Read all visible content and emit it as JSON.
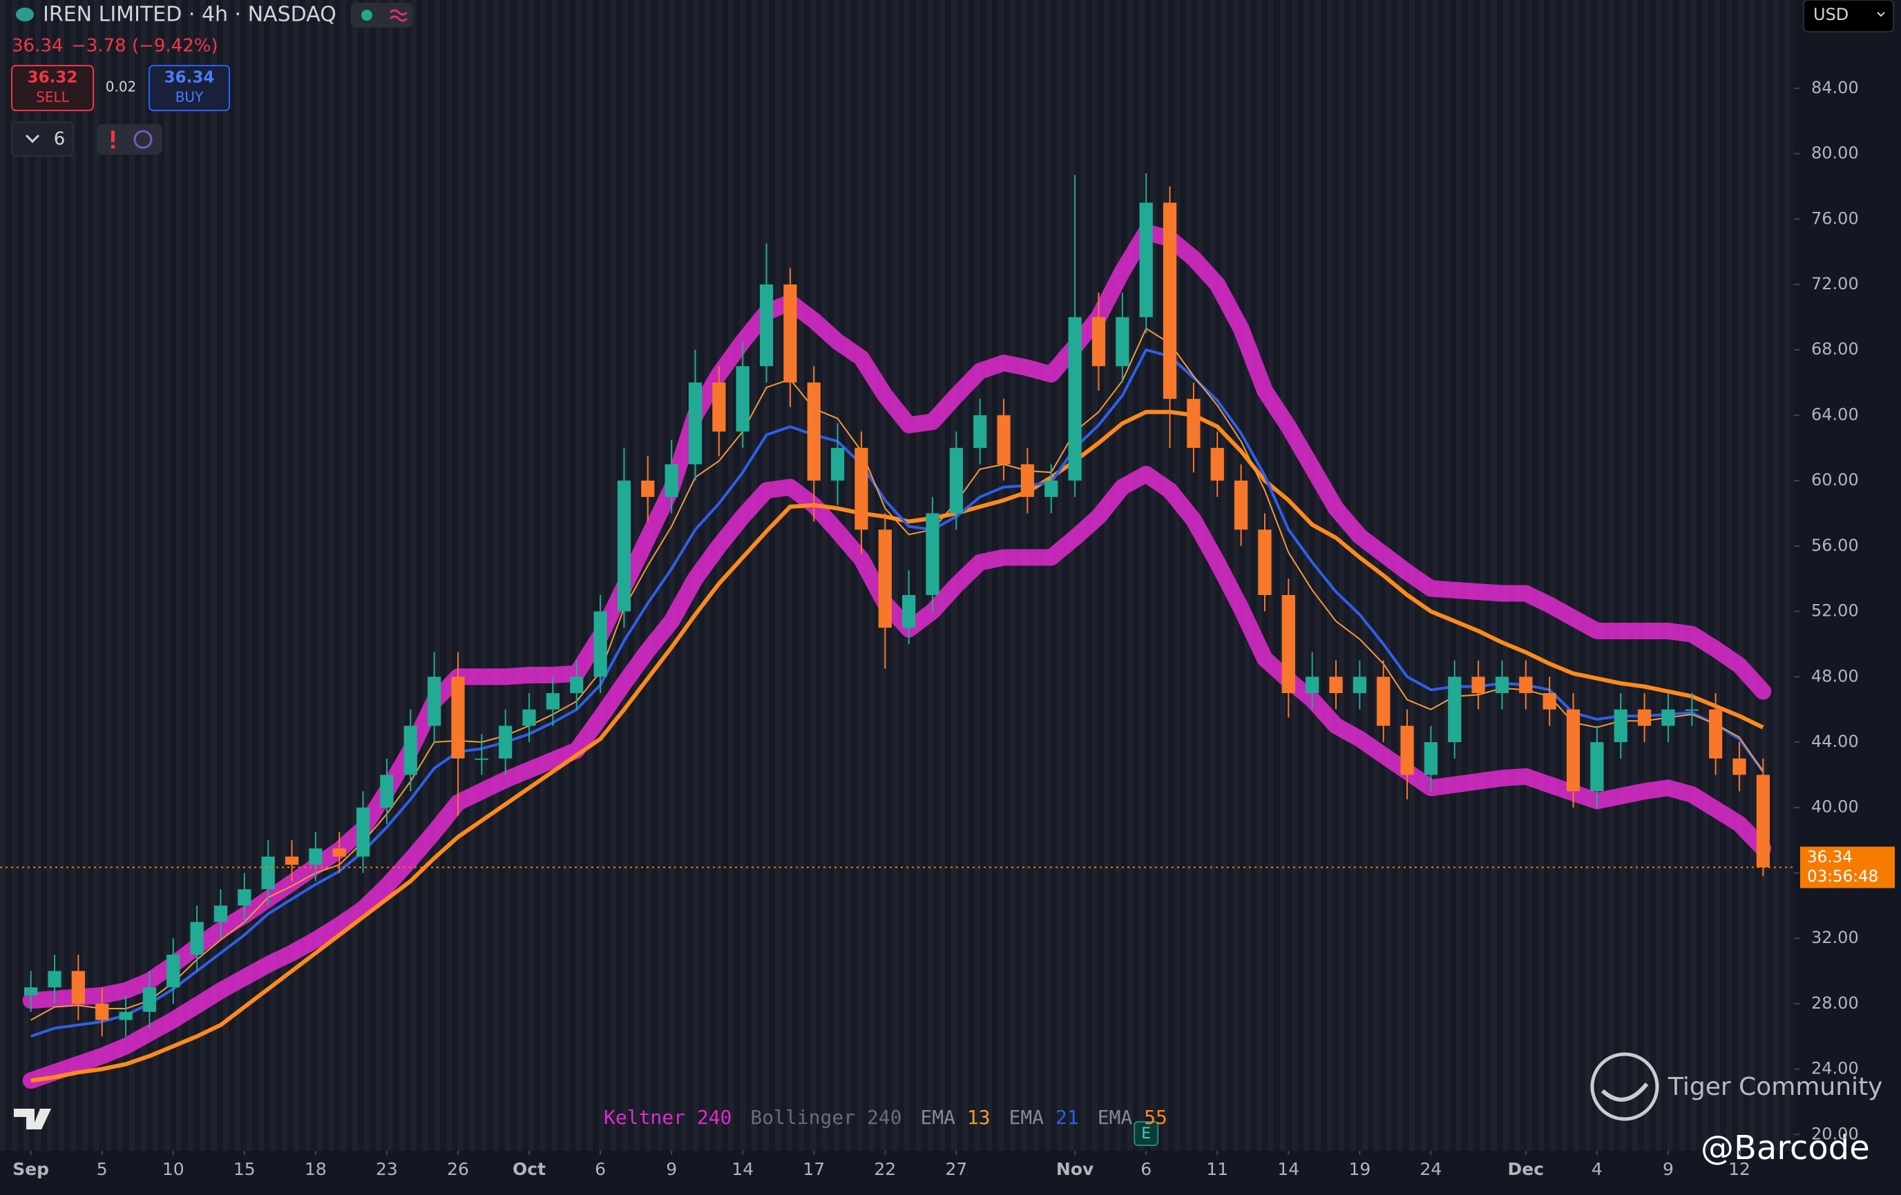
{
  "header": {
    "title": "IREN LIMITED · 4h · NASDAQ",
    "price": "36.34",
    "change": "−3.78 (−9.42%)",
    "sell_price": "36.32",
    "sell_label": "SELL",
    "spread": "0.02",
    "buy_price": "36.34",
    "buy_label": "BUY",
    "indicator_count": "6",
    "currency": "USD"
  },
  "chart_data": {
    "type": "candlestick",
    "x": [
      0,
      1,
      2,
      3,
      4,
      5,
      6,
      7,
      8,
      9,
      10,
      11,
      12,
      13,
      14,
      15,
      16,
      17,
      18,
      19,
      20,
      21,
      22,
      23,
      24,
      25,
      26,
      27,
      28,
      29,
      30,
      31,
      32,
      33,
      34,
      35,
      36,
      37,
      38,
      39,
      40,
      41,
      42,
      43,
      44,
      45,
      46,
      47,
      48,
      49,
      50,
      51,
      52,
      53,
      54,
      55,
      56,
      57,
      58,
      59,
      60,
      61,
      62,
      63,
      64,
      65,
      66,
      67,
      68,
      69,
      70,
      71,
      72,
      73
    ],
    "open": [
      28.5,
      29,
      30,
      28,
      27,
      27.5,
      29,
      31,
      33,
      34,
      35,
      37,
      36.5,
      37.5,
      37,
      40,
      42,
      45,
      48,
      43,
      43,
      45,
      46,
      47,
      48,
      52,
      60,
      59,
      61,
      66,
      63,
      67,
      72,
      66,
      60,
      62,
      57,
      51,
      53,
      58,
      62,
      64,
      61,
      59,
      60,
      70,
      67,
      70,
      77,
      65,
      62,
      60,
      57,
      53,
      47,
      48,
      47,
      48,
      45,
      42,
      44,
      48,
      47,
      48,
      47,
      46,
      41,
      44,
      46,
      45,
      46,
      46,
      43,
      42
    ],
    "high": [
      30,
      31,
      31,
      29,
      28.5,
      30,
      32,
      34,
      35,
      36,
      38,
      38,
      38.5,
      38.5,
      41,
      43,
      46,
      49.5,
      49.5,
      44.5,
      46,
      47,
      48,
      49,
      53,
      62,
      61.5,
      62.5,
      68,
      67,
      68.5,
      74.5,
      73,
      67,
      63.5,
      63,
      58,
      54.5,
      59,
      63,
      65,
      65,
      62,
      61,
      78.7,
      71.5,
      71.5,
      78.8,
      78,
      66,
      63,
      61,
      58,
      54,
      49.5,
      49,
      49,
      49,
      46,
      45,
      49,
      49,
      49,
      49,
      48,
      47,
      45,
      47,
      47,
      47,
      47,
      47,
      44,
      43
    ],
    "low": [
      27.5,
      28,
      27,
      26,
      26,
      26.5,
      28,
      30,
      32,
      33,
      34,
      35.5,
      35.5,
      36,
      36,
      39,
      41,
      44,
      39.5,
      42,
      42,
      44,
      45,
      46,
      47,
      51,
      57.5,
      58,
      60,
      61.5,
      62,
      66,
      64.5,
      57.5,
      58.5,
      55.5,
      48.5,
      50,
      52,
      57,
      61,
      60,
      58,
      58,
      59,
      65.5,
      66,
      69,
      62,
      60.5,
      59,
      56,
      52,
      45.5,
      46,
      46,
      46,
      44,
      40.5,
      41,
      43,
      46,
      46,
      46,
      45,
      40,
      40,
      43,
      44,
      44,
      45,
      42,
      41,
      35.8
    ],
    "close": [
      29,
      30,
      28,
      27,
      27.5,
      29,
      31,
      33,
      34,
      35,
      37,
      36.5,
      37.5,
      37,
      40,
      42,
      45,
      48,
      43,
      43,
      45,
      46,
      47,
      48,
      52,
      60,
      59,
      61,
      66,
      63,
      67,
      72,
      66,
      60,
      62,
      57,
      51,
      53,
      58,
      62,
      64,
      61,
      59,
      60,
      70,
      67,
      70,
      77,
      65,
      62,
      60,
      57,
      53,
      47,
      48,
      47,
      48,
      45,
      42,
      44,
      48,
      47,
      48,
      47,
      46,
      41,
      44,
      46,
      45,
      46,
      46,
      43,
      42,
      36.34
    ],
    "up_color": "#22ab94",
    "down_color": "#f7782a",
    "keltner": {
      "name": "Keltner",
      "length": 240,
      "color": "#e02ccf",
      "upper": [
        28.2,
        28.3,
        28.4,
        28.5,
        28.8,
        29.4,
        30.4,
        31.5,
        32.5,
        33.4,
        34.4,
        35.4,
        36.4,
        37.4,
        38.7,
        41.0,
        43.5,
        46.5,
        48.0,
        48.0,
        48.0,
        48.1,
        48.1,
        48.2,
        50.5,
        53.5,
        56.5,
        59.5,
        64.0,
        66.5,
        68.5,
        70.3,
        70.9,
        69.8,
        68.5,
        67.5,
        65.2,
        63.4,
        63.6,
        65.2,
        66.7,
        67.2,
        66.9,
        66.5,
        68.2,
        70.0,
        72.8,
        75.2,
        74.8,
        73.6,
        72.0,
        69.3,
        65.5,
        63.3,
        60.8,
        58.3,
        56.6,
        55.5,
        54.4,
        53.4,
        53.3,
        53.2,
        53.1,
        53.1,
        52.4,
        51.6,
        50.8,
        50.8,
        50.8,
        50.8,
        50.6,
        49.7,
        48.7,
        47.1
      ],
      "lower": [
        23.3,
        23.8,
        24.3,
        24.8,
        25.4,
        26.2,
        27.0,
        27.9,
        28.8,
        29.6,
        30.4,
        31.1,
        31.9,
        32.8,
        33.8,
        35.2,
        36.8,
        38.5,
        40.3,
        41.0,
        41.7,
        42.3,
        42.9,
        43.5,
        45.5,
        47.6,
        49.6,
        51.4,
        54.0,
        56.0,
        57.8,
        59.4,
        59.6,
        58.5,
        56.9,
        55.2,
        52.5,
        50.9,
        52.0,
        53.6,
        55.0,
        55.3,
        55.3,
        55.3,
        56.5,
        57.8,
        59.6,
        60.4,
        59.4,
        57.6,
        55.0,
        52.2,
        49.1,
        47.8,
        46.6,
        45.0,
        44.2,
        43.2,
        42.2,
        41.2,
        41.4,
        41.6,
        41.8,
        41.9,
        41.4,
        40.9,
        40.4,
        40.7,
        41.0,
        41.2,
        40.8,
        39.9,
        39.0,
        37.5
      ]
    },
    "bollinger": {
      "name": "Bollinger",
      "length": 240,
      "color": "#6a6d78"
    },
    "emas": [
      {
        "name": "EMA",
        "length": 13,
        "color": "#f59a3c",
        "width": 2,
        "values": [
          27,
          27.8,
          27.9,
          27.7,
          27.7,
          28.2,
          29.3,
          30.7,
          31.9,
          33.0,
          34.5,
          35.2,
          36.0,
          36.5,
          37.9,
          39.6,
          41.6,
          44.0,
          44.1,
          44.0,
          44.4,
          45.0,
          45.7,
          46.5,
          48.3,
          52.2,
          54.8,
          57.2,
          60.2,
          61.2,
          63.0,
          65.7,
          66.2,
          64.4,
          63.8,
          61.8,
          58.3,
          56.7,
          57.0,
          58.7,
          60.7,
          61.0,
          60.6,
          60.5,
          63.0,
          64.2,
          66.1,
          69.3,
          68.4,
          66.4,
          64.6,
          62.4,
          59.4,
          55.6,
          53.3,
          51.4,
          50.3,
          48.8,
          46.6,
          46.0,
          46.8,
          46.9,
          47.3,
          47.2,
          46.8,
          45.2,
          44.9,
          45.3,
          45.3,
          45.5,
          45.7,
          45.1,
          44.3,
          42.2
        ]
      },
      {
        "name": "EMA",
        "length": 21,
        "color": "#2f5fe8",
        "width": 4,
        "values": [
          26.0,
          26.5,
          26.7,
          26.9,
          27.3,
          28.0,
          28.9,
          30.0,
          31.1,
          32.2,
          33.5,
          34.4,
          35.3,
          36.1,
          37.3,
          38.8,
          40.5,
          42.4,
          43.4,
          43.6,
          44.0,
          44.5,
          45.2,
          46.0,
          47.5,
          50.2,
          52.5,
          54.6,
          57.0,
          58.6,
          60.5,
          62.8,
          63.3,
          62.8,
          62.4,
          61.0,
          58.8,
          57.2,
          57.0,
          57.8,
          59.0,
          59.6,
          59.7,
          59.9,
          62.0,
          63.4,
          65.2,
          68.0,
          67.6,
          66.3,
          64.9,
          62.9,
          60.3,
          57.0,
          55.0,
          53.2,
          51.8,
          50.0,
          48.0,
          47.2,
          47.4,
          47.4,
          47.6,
          47.5,
          47.2,
          45.8,
          45.4,
          45.6,
          45.6,
          45.7,
          45.8,
          45.1,
          44.2,
          42.2
        ]
      },
      {
        "name": "EMA",
        "length": 55,
        "color": "#ff8a1c",
        "width": 6,
        "values": [
          23.3,
          23.5,
          23.8,
          24.0,
          24.3,
          24.8,
          25.4,
          26.0,
          26.7,
          27.8,
          28.9,
          30.0,
          31.1,
          32.2,
          33.3,
          34.4,
          35.5,
          36.9,
          38.2,
          39.2,
          40.2,
          41.2,
          42.2,
          43.2,
          44.2,
          46.0,
          47.9,
          49.8,
          51.8,
          53.7,
          55.3,
          56.9,
          58.4,
          58.5,
          58.3,
          58.0,
          57.8,
          57.5,
          57.7,
          58.0,
          58.4,
          58.8,
          59.3,
          60.2,
          61.2,
          62.3,
          63.5,
          64.2,
          64.2,
          64.0,
          63.3,
          61.8,
          60.0,
          58.8,
          57.3,
          56.5,
          55.3,
          54.2,
          53.0,
          52.0,
          51.4,
          50.8,
          50.1,
          49.5,
          48.8,
          48.2,
          47.9,
          47.6,
          47.4,
          47.1,
          46.8,
          46.2,
          45.6,
          44.9
        ]
      }
    ],
    "xlim": [
      -1.3,
      74.3
    ],
    "xticks": [
      {
        "value": 0,
        "label": "Sep"
      },
      {
        "value": 3,
        "label": "5"
      },
      {
        "value": 6,
        "label": "10"
      },
      {
        "value": 9,
        "label": "15"
      },
      {
        "value": 12,
        "label": "18"
      },
      {
        "value": 15,
        "label": "23"
      },
      {
        "value": 18,
        "label": "26"
      },
      {
        "value": 21,
        "label": "Oct"
      },
      {
        "value": 24,
        "label": "6"
      },
      {
        "value": 27,
        "label": "9"
      },
      {
        "value": 30,
        "label": "14"
      },
      {
        "value": 33,
        "label": "17"
      },
      {
        "value": 36,
        "label": "22"
      },
      {
        "value": 39,
        "label": "27"
      },
      {
        "value": 44,
        "label": "Nov"
      },
      {
        "value": 47,
        "label": "6"
      },
      {
        "value": 50,
        "label": "11"
      },
      {
        "value": 53,
        "label": "14"
      },
      {
        "value": 56,
        "label": "19"
      },
      {
        "value": 59,
        "label": "24"
      },
      {
        "value": 63,
        "label": "Dec"
      },
      {
        "value": 66,
        "label": "4"
      },
      {
        "value": 69,
        "label": "9"
      },
      {
        "value": 72,
        "label": "12"
      }
    ],
    "ylim": [
      19,
      89.4
    ],
    "yticks": [
      {
        "value": 20,
        "label": "20.00"
      },
      {
        "value": 24,
        "label": "24.00"
      },
      {
        "value": 28,
        "label": "28.00"
      },
      {
        "value": 32,
        "label": "32.00"
      },
      {
        "value": 36,
        "label": "36.00"
      },
      {
        "value": 40,
        "label": "40.00"
      },
      {
        "value": 44,
        "label": "44.00"
      },
      {
        "value": 48,
        "label": "48.00"
      },
      {
        "value": 52,
        "label": "52.00"
      },
      {
        "value": 56,
        "label": "56.00"
      },
      {
        "value": 60,
        "label": "60.00"
      },
      {
        "value": 64,
        "label": "64.00"
      },
      {
        "value": 68,
        "label": "68.00"
      },
      {
        "value": 72,
        "label": "72.00"
      },
      {
        "value": 76,
        "label": "76.00"
      },
      {
        "value": 80,
        "label": "80.00"
      },
      {
        "value": 84,
        "label": "84.00"
      }
    ],
    "last_price": 36.34,
    "countdown": "03:56:48",
    "last_price_color": "#f57c00",
    "earnings_marker": "E"
  },
  "watermark": {
    "brand": "Tiger Community",
    "handle": "@Barcode"
  }
}
